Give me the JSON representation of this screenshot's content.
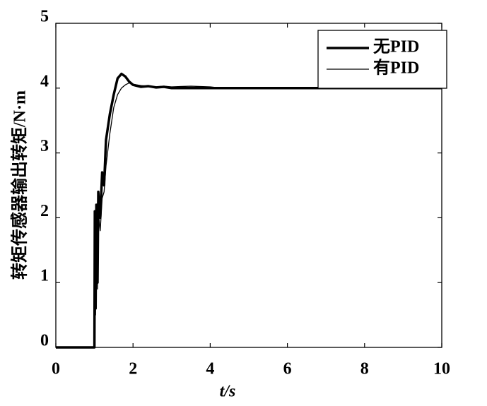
{
  "chart_data": {
    "type": "line",
    "xlabel": "t/s",
    "ylabel": "转矩传感器输出转矩/N·m",
    "x": [
      0,
      1,
      1.01,
      1.03,
      1.05,
      1.08,
      1.1,
      1.15,
      1.2,
      1.25,
      1.3,
      1.4,
      1.5,
      1.6,
      1.7,
      1.8,
      1.9,
      2.0,
      2.2,
      2.4,
      2.6,
      2.8,
      3.0,
      3.5,
      4.0,
      4.3,
      6,
      8,
      10
    ],
    "series": [
      {
        "name": "无PID",
        "color": "#000000",
        "width": 3.5,
        "values": [
          0,
          0,
          2.1,
          0.6,
          2.2,
          1.0,
          2.4,
          2.0,
          2.7,
          2.5,
          3.2,
          3.6,
          3.9,
          4.15,
          4.22,
          4.18,
          4.1,
          4.05,
          4.02,
          4.03,
          4.01,
          4.02,
          4.0,
          4.0,
          4.0,
          4.0,
          4.0,
          4.0,
          4.0
        ]
      },
      {
        "name": "有PID",
        "color": "#000000",
        "width": 1.3,
        "values": [
          0,
          0,
          1.2,
          0.5,
          1.8,
          0.9,
          2.1,
          1.8,
          2.3,
          2.4,
          2.8,
          3.3,
          3.7,
          3.9,
          4.0,
          4.05,
          4.08,
          4.06,
          4.04,
          4.03,
          4.02,
          4.03,
          4.02,
          4.03,
          4.02,
          4.0,
          4.0,
          4.0,
          4.0
        ]
      }
    ],
    "xlim": [
      0,
      10
    ],
    "xticks": [
      0,
      2,
      4,
      6,
      8,
      10
    ],
    "ylim": [
      0,
      5
    ],
    "yticks": [
      0,
      1,
      2,
      3,
      4,
      5
    ],
    "grid": false,
    "legend": "upper right"
  }
}
